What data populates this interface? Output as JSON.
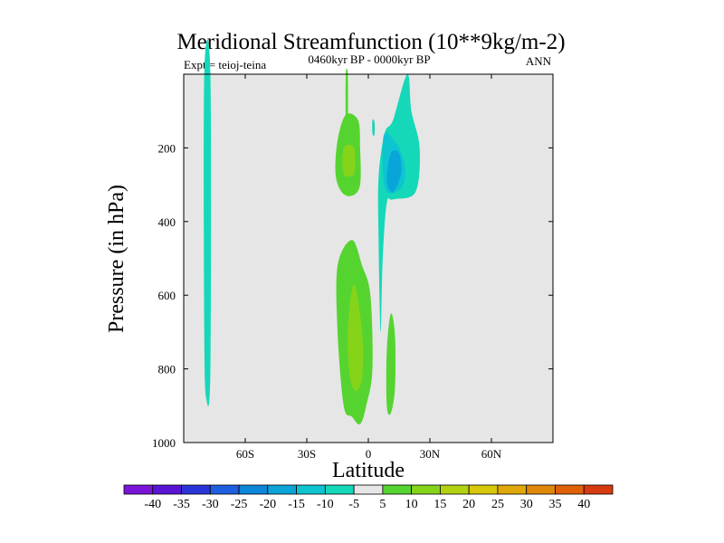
{
  "chart_data": {
    "type": "filled-contour",
    "title": "Meridional Streamfunction (10**9kg/m-2)",
    "left_label": "Expt = teioj-teina",
    "center_label": "0460kyr BP - 0000kyr BP",
    "right_label": "ANN",
    "xlabel": "Latitude",
    "ylabel": "Pressure (in hPa)",
    "xlim": [
      -90,
      90
    ],
    "ylim": [
      1000,
      0
    ],
    "x_ticks": [
      {
        "value": -60,
        "label": "60S"
      },
      {
        "value": -30,
        "label": "30S"
      },
      {
        "value": 0,
        "label": "0"
      },
      {
        "value": 30,
        "label": "30N"
      },
      {
        "value": 60,
        "label": "60N"
      }
    ],
    "y_ticks": [
      {
        "value": 200,
        "label": "200"
      },
      {
        "value": 400,
        "label": "400"
      },
      {
        "value": 600,
        "label": "600"
      },
      {
        "value": 800,
        "label": "800"
      },
      {
        "value": 1000,
        "label": "1000"
      }
    ],
    "contour_levels": [
      -40,
      -35,
      -30,
      -25,
      -20,
      -15,
      -10,
      -5,
      5,
      10,
      15,
      20,
      25,
      30,
      35,
      40
    ],
    "colorbar_colors": [
      "#7a14d9",
      "#5a14d4",
      "#2a35d8",
      "#1f5ee0",
      "#0b86d8",
      "#09a5d8",
      "#0cc5d0",
      "#15d8b8",
      "#e6e6e6",
      "#55d430",
      "#86d41a",
      "#b4d212",
      "#d8c80a",
      "#e0a808",
      "#e08808",
      "#e06008",
      "#d83a10"
    ],
    "background_color": "#e6e6e6",
    "regions": [
      {
        "name": "sh-negative-cell",
        "level": -5,
        "color": "#15d8b8",
        "points": [
          [
            -80,
            0
          ],
          [
            -77,
            0
          ],
          [
            -77,
            800
          ],
          [
            -79,
            880
          ],
          [
            -80,
            700
          ]
        ]
      },
      {
        "name": "upper-positive-cell-outer",
        "level": 5,
        "color": "#55d430",
        "points": [
          [
            -11,
            110
          ],
          [
            -5,
            125
          ],
          [
            -4,
            200
          ],
          [
            -4,
            300
          ],
          [
            -8,
            330
          ],
          [
            -13,
            320
          ],
          [
            -16,
            270
          ],
          [
            -15,
            180
          ]
        ]
      },
      {
        "name": "upper-positive-cell-inner",
        "level": 10,
        "color": "#86d41a",
        "points": [
          [
            -12,
            200
          ],
          [
            -7,
            200
          ],
          [
            -7,
            270
          ],
          [
            -12,
            270
          ]
        ]
      },
      {
        "name": "upper-positive-plume",
        "level": 5,
        "color": "#55d430",
        "points": [
          [
            -11,
            0
          ],
          [
            -10,
            0
          ],
          [
            -10,
            125
          ],
          [
            -11,
            125
          ]
        ]
      },
      {
        "name": "nh-negative-cell",
        "level": -5,
        "color": "#15d8b8",
        "points": [
          [
            19,
            0
          ],
          [
            21,
            100
          ],
          [
            25,
            200
          ],
          [
            23,
            320
          ],
          [
            12,
            340
          ],
          [
            9,
            350
          ],
          [
            7,
            500
          ],
          [
            6,
            700
          ],
          [
            5,
            450
          ],
          [
            5,
            280
          ],
          [
            8,
            160
          ],
          [
            12,
            125
          ]
        ]
      },
      {
        "name": "nh-negative-core",
        "level": -10,
        "color": "#0cc5d0",
        "points": [
          [
            8,
            160
          ],
          [
            15,
            200
          ],
          [
            18,
            260
          ],
          [
            16,
            310
          ],
          [
            9,
            320
          ],
          [
            7,
            250
          ]
        ]
      },
      {
        "name": "nh-negative-inner",
        "level": -15,
        "color": "#09a5d8",
        "points": [
          [
            11,
            215
          ],
          [
            15,
            215
          ],
          [
            16,
            270
          ],
          [
            12,
            320
          ],
          [
            9,
            290
          ]
        ]
      },
      {
        "name": "small-negative-patch",
        "level": -5,
        "color": "#15d8b8",
        "points": [
          [
            2,
            125
          ],
          [
            3,
            130
          ],
          [
            3,
            165
          ],
          [
            2,
            160
          ]
        ]
      },
      {
        "name": "lower-positive-cell-outer",
        "level": 5,
        "color": "#55d430",
        "points": [
          [
            -8,
            450
          ],
          [
            -3,
            520
          ],
          [
            1,
            600
          ],
          [
            2,
            800
          ],
          [
            -1,
            900
          ],
          [
            -4,
            950
          ],
          [
            -8,
            930
          ],
          [
            -12,
            900
          ],
          [
            -15,
            700
          ],
          [
            -15,
            520
          ]
        ]
      },
      {
        "name": "lower-positive-cell-inner",
        "level": 10,
        "color": "#86d41a",
        "points": [
          [
            -7,
            570
          ],
          [
            -3,
            700
          ],
          [
            -3,
            820
          ],
          [
            -6,
            860
          ],
          [
            -9,
            820
          ],
          [
            -10,
            700
          ]
        ]
      },
      {
        "name": "nh-lower-positive-cell",
        "level": 5,
        "color": "#55d430",
        "points": [
          [
            11,
            650
          ],
          [
            13,
            710
          ],
          [
            13,
            850
          ],
          [
            11,
            920
          ],
          [
            9,
            900
          ],
          [
            9,
            750
          ]
        ]
      }
    ]
  }
}
